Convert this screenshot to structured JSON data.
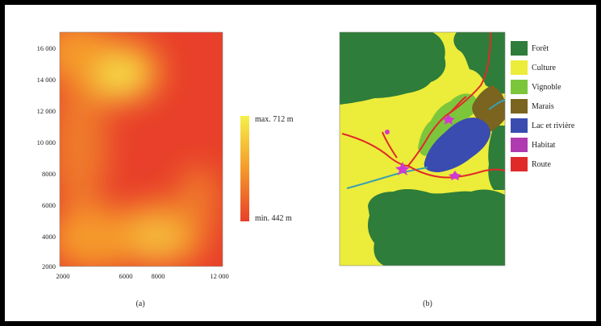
{
  "panel_a": {
    "caption": "(a)",
    "y_ticks": [
      "16 000",
      "14 000",
      "12 000",
      "10 000",
      "8000",
      "6000",
      "4000",
      "2000"
    ],
    "x_ticks": [
      "2000",
      "6000",
      "8000",
      "12 000"
    ],
    "legend_max": "max. 712 m",
    "legend_min": "min. 442 m",
    "colors": {
      "high": "#f5f04a",
      "mid": "#f59a2a",
      "low": "#e8402a"
    }
  },
  "panel_b": {
    "caption": "(b)",
    "legend": [
      {
        "label": "Forêt",
        "color": "#2e7d3a"
      },
      {
        "label": "Culture",
        "color": "#ecec3a"
      },
      {
        "label": "Vignoble",
        "color": "#7cc63c"
      },
      {
        "label": "Marais",
        "color": "#7a6420"
      },
      {
        "label": "Lac et rivière",
        "color": "#3a4cb0"
      },
      {
        "label": "Habitat",
        "color": "#b03ab0"
      },
      {
        "label": "Route",
        "color": "#e02a2a"
      }
    ]
  }
}
